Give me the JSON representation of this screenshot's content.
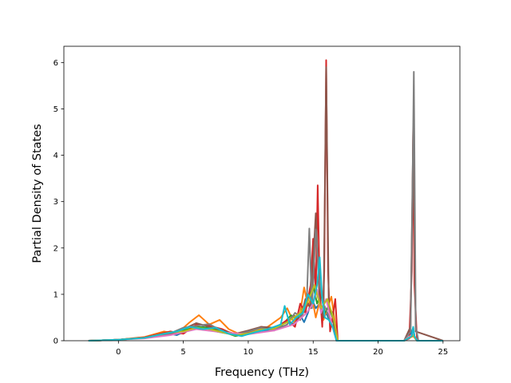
{
  "chart_data": {
    "type": "line",
    "title": "",
    "xlabel": "Frequency (THz)",
    "ylabel": "Partial Density of States",
    "xlim": [
      -4.2,
      26.3
    ],
    "ylim": [
      0,
      6.35
    ],
    "xticks": [
      0,
      5,
      10,
      15,
      20,
      25
    ],
    "yticks": [
      0,
      1,
      2,
      3,
      4,
      5,
      6
    ],
    "grid": false,
    "legend": "none",
    "series": [
      {
        "color": "#1f77b4",
        "x": [
          -2.3,
          0,
          2,
          3.5,
          4.5,
          5.5,
          6.5,
          7.5,
          8.5,
          9.5,
          10.5,
          11.5,
          12.5,
          13,
          13.5,
          14,
          14.3,
          14.6,
          14.9,
          15.2,
          15.5,
          15.8,
          16,
          16.3,
          16.6,
          16.8,
          18,
          20,
          22,
          22.4,
          22.6,
          22.7,
          22.8,
          23,
          25
        ],
        "y": [
          0,
          0.02,
          0.07,
          0.18,
          0.12,
          0.25,
          0.3,
          0.2,
          0.15,
          0.1,
          0.2,
          0.22,
          0.3,
          0.45,
          0.35,
          0.55,
          0.4,
          0.6,
          0.9,
          0.7,
          0.8,
          0.5,
          0.6,
          0.4,
          0.3,
          0,
          0,
          0,
          0,
          0.05,
          0.2,
          0.28,
          0.1,
          0,
          0
        ]
      },
      {
        "color": "#ff7f0e",
        "x": [
          -2.3,
          0,
          2,
          3.5,
          4.5,
          5.5,
          6.2,
          7,
          7.8,
          8.5,
          9.5,
          10.5,
          11.5,
          12.5,
          13,
          13.5,
          14,
          14.3,
          14.6,
          14.9,
          15.2,
          15.5,
          15.8,
          16.1,
          16.4,
          16.7,
          16.9,
          18,
          20,
          22,
          22.7,
          23,
          25
        ],
        "y": [
          0,
          0.02,
          0.08,
          0.2,
          0.15,
          0.4,
          0.55,
          0.35,
          0.45,
          0.25,
          0.12,
          0.22,
          0.3,
          0.5,
          0.7,
          0.4,
          0.6,
          1.15,
          0.75,
          0.95,
          0.5,
          0.85,
          0.45,
          0.7,
          0.95,
          0.35,
          0,
          0,
          0,
          0,
          0.1,
          0,
          0
        ]
      },
      {
        "color": "#2ca02c",
        "x": [
          -2.3,
          0,
          2,
          4,
          5,
          6,
          7,
          8,
          9,
          10,
          11,
          12,
          12.8,
          13.3,
          13.8,
          14.2,
          14.6,
          15,
          15.3,
          15.6,
          15.9,
          16.2,
          16.5,
          16.8,
          18,
          20,
          22,
          22.7,
          23,
          25
        ],
        "y": [
          0,
          0.02,
          0.06,
          0.17,
          0.22,
          0.3,
          0.28,
          0.2,
          0.1,
          0.15,
          0.22,
          0.28,
          0.4,
          0.55,
          0.45,
          0.7,
          0.9,
          1.2,
          0.8,
          1.0,
          0.6,
          0.75,
          0.5,
          0,
          0,
          0,
          0,
          0.12,
          0,
          0
        ]
      },
      {
        "color": "#d62728",
        "x": [
          -2.3,
          0,
          2,
          4,
          5,
          6,
          7,
          8,
          9,
          10,
          11,
          12,
          13,
          13.6,
          14,
          14.4,
          14.8,
          15,
          15.2,
          15.35,
          15.5,
          15.7,
          15.85,
          16.0,
          16.15,
          16.3,
          16.5,
          16.7,
          16.9,
          18,
          20,
          22,
          22.4,
          22.6,
          22.7,
          22.8,
          23,
          25
        ],
        "y": [
          0,
          0.02,
          0.07,
          0.2,
          0.15,
          0.35,
          0.32,
          0.25,
          0.12,
          0.18,
          0.3,
          0.25,
          0.45,
          0.3,
          0.8,
          0.6,
          1.2,
          2.2,
          1.0,
          3.35,
          1.1,
          0.3,
          1.5,
          6.05,
          1.5,
          0.2,
          0.5,
          0.9,
          0,
          0,
          0,
          0,
          0.05,
          1.5,
          4.6,
          1.2,
          0,
          0
        ]
      },
      {
        "color": "#8c564b",
        "x": [
          -2.3,
          0,
          2,
          4,
          5,
          6,
          7,
          8,
          9,
          10,
          11,
          12,
          13,
          13.5,
          14,
          14.4,
          14.8,
          15.2,
          15.5,
          15.8,
          16.0,
          16.2,
          16.5,
          16.8,
          18,
          20,
          22,
          22.5,
          22.7,
          22.9,
          25
        ],
        "y": [
          0,
          0.02,
          0.06,
          0.15,
          0.25,
          0.38,
          0.3,
          0.22,
          0.15,
          0.22,
          0.3,
          0.28,
          0.4,
          0.55,
          0.45,
          0.9,
          0.7,
          2.75,
          0.8,
          0.5,
          5.9,
          0.7,
          0.6,
          0,
          0,
          0,
          0,
          0.3,
          4.5,
          0.2,
          0
        ]
      },
      {
        "color": "#7f7f7f",
        "x": [
          -2.3,
          0,
          2,
          4,
          5,
          6,
          7,
          8,
          9,
          10,
          11,
          12,
          13,
          13.6,
          14.1,
          14.5,
          14.7,
          14.9,
          15.2,
          15.5,
          15.8,
          16.1,
          16.5,
          16.8,
          18,
          20,
          22,
          22.5,
          22.65,
          22.75,
          22.9,
          23.1,
          25
        ],
        "y": [
          0,
          0.02,
          0.06,
          0.16,
          0.28,
          0.32,
          0.36,
          0.2,
          0.12,
          0.2,
          0.28,
          0.22,
          0.35,
          0.6,
          0.5,
          0.8,
          2.42,
          0.7,
          2.4,
          1.2,
          0.8,
          0.6,
          0.3,
          0,
          0,
          0,
          0,
          0.2,
          3.2,
          5.8,
          0.3,
          0,
          0
        ]
      },
      {
        "color": "#e377c2",
        "x": [
          -2.3,
          0,
          2,
          4,
          6,
          8,
          10,
          12,
          13.5,
          14.5,
          15.0,
          15.3,
          15.6,
          16.0,
          16.4,
          16.8,
          18,
          22,
          22.7,
          23,
          25
        ],
        "y": [
          0,
          0.02,
          0.05,
          0.12,
          0.25,
          0.18,
          0.14,
          0.22,
          0.35,
          0.6,
          0.8,
          1.1,
          0.6,
          0.9,
          0.4,
          0,
          0,
          0,
          0.15,
          0,
          0
        ]
      },
      {
        "color": "#bcbd22",
        "x": [
          -2.3,
          0,
          2,
          4,
          5,
          6,
          7,
          8,
          9,
          10,
          11,
          12,
          13,
          14,
          14.6,
          15.1,
          15.6,
          16.1,
          16.6,
          16.9,
          18,
          22,
          22.7,
          23,
          25
        ],
        "y": [
          0,
          0.02,
          0.06,
          0.18,
          0.2,
          0.28,
          0.25,
          0.18,
          0.12,
          0.16,
          0.24,
          0.26,
          0.4,
          0.6,
          0.85,
          1.2,
          0.7,
          0.9,
          0.45,
          0,
          0,
          0,
          0.12,
          0,
          0
        ]
      },
      {
        "color": "#17becf",
        "x": [
          -2.3,
          0,
          2,
          3.5,
          4.5,
          5.5,
          6.5,
          7.5,
          8.5,
          9.5,
          10.5,
          11.5,
          12.5,
          12.8,
          13.2,
          13.7,
          14.2,
          14.6,
          15.0,
          15.3,
          15.5,
          15.7,
          15.9,
          16.2,
          16.5,
          16.8,
          18,
          20,
          22,
          22.6,
          22.7,
          22.8,
          23,
          25
        ],
        "y": [
          0,
          0.02,
          0.06,
          0.15,
          0.2,
          0.3,
          0.25,
          0.28,
          0.15,
          0.1,
          0.18,
          0.25,
          0.35,
          0.75,
          0.35,
          0.5,
          0.6,
          1.0,
          0.8,
          1.2,
          1.8,
          0.9,
          0.5,
          0.45,
          0.3,
          0,
          0,
          0,
          0,
          0.1,
          0.3,
          0.1,
          0,
          0
        ]
      }
    ]
  }
}
